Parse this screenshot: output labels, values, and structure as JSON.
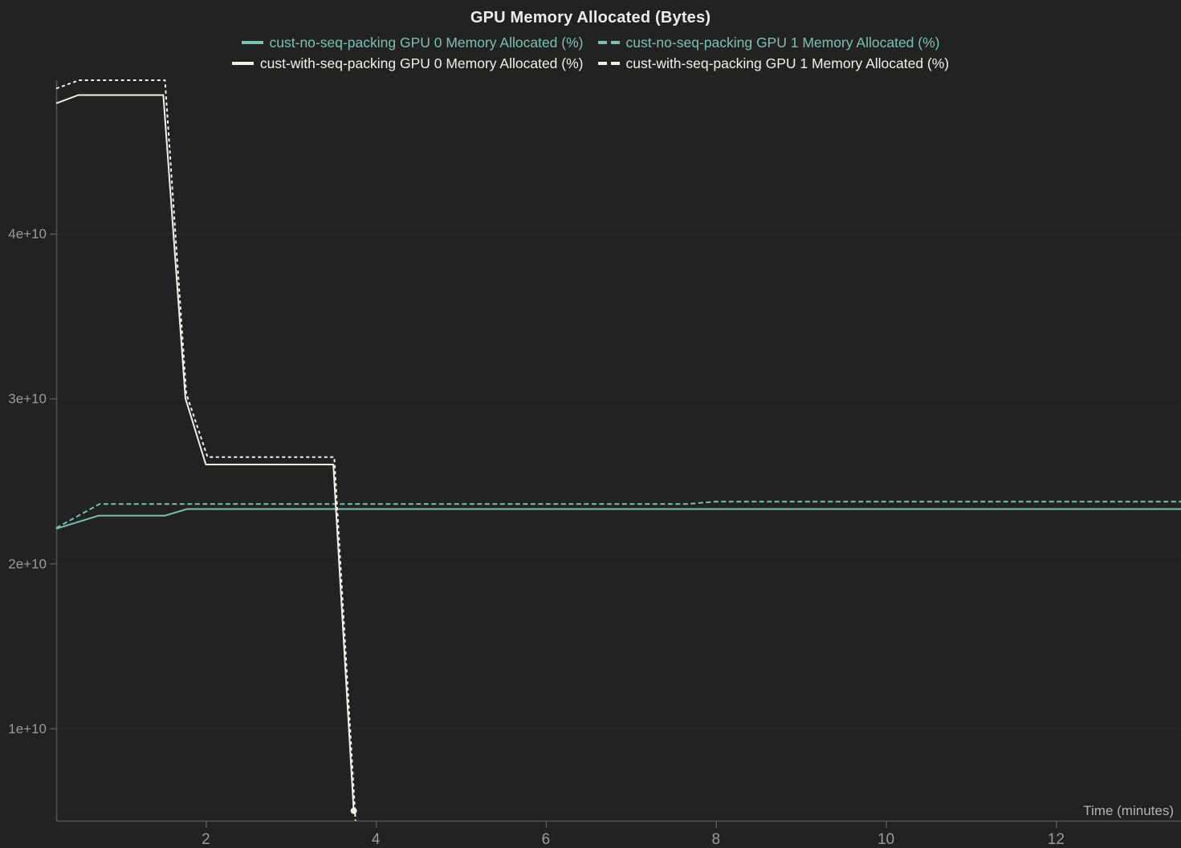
{
  "chart_data": {
    "type": "line",
    "title": "GPU Memory Allocated (Bytes)",
    "xlabel": "Time (minutes)",
    "ylabel": "",
    "xlim": [
      0.24,
      13.47
    ],
    "ylim": [
      4400000000.0,
      49300000000.0
    ],
    "x_ticks": [
      2,
      4,
      6,
      8,
      10,
      12
    ],
    "x_tick_labels": [
      "2",
      "4",
      "6",
      "8",
      "10",
      "12"
    ],
    "y_ticks": [
      10000000000.0,
      20000000000.0,
      30000000000.0,
      40000000000.0
    ],
    "y_tick_labels": [
      "1e+10",
      "2e+10",
      "3e+10",
      "4e+10"
    ],
    "grid": "horizontal-faint",
    "legend_position": "top-center-two-rows",
    "series": [
      {
        "name": "cust-no-seq-packing GPU 0 Memory Allocated (%)",
        "color": "#76c2b0",
        "dash": false,
        "end_marker": false,
        "points": [
          [
            0.24,
            22100000000.0
          ],
          [
            0.74,
            22900000000.0
          ],
          [
            1.52,
            22900000000.0
          ],
          [
            1.78,
            23300000000.0
          ],
          [
            13.47,
            23300000000.0
          ]
        ]
      },
      {
        "name": "cust-no-seq-packing GPU 1 Memory Allocated (%)",
        "color": "#76c2b0",
        "dash": true,
        "end_marker": false,
        "points": [
          [
            0.24,
            22150000000.0
          ],
          [
            0.75,
            23600000000.0
          ],
          [
            7.65,
            23600000000.0
          ],
          [
            8.0,
            23750000000.0
          ],
          [
            13.47,
            23750000000.0
          ]
        ]
      },
      {
        "name": "cust-with-seq-packing GPU 0 Memory Allocated (%)",
        "color": "#f2efe6",
        "dash": false,
        "end_marker": true,
        "points": [
          [
            0.24,
            47900000000.0
          ],
          [
            0.5,
            48400000000.0
          ],
          [
            1.5,
            48400000000.0
          ],
          [
            1.76,
            30000000000.0
          ],
          [
            2.0,
            26000000000.0
          ],
          [
            3.5,
            26000000000.0
          ],
          [
            3.74,
            5000000000.0
          ]
        ]
      },
      {
        "name": "cust-with-seq-packing GPU 1 Memory Allocated (%)",
        "color": "#f2efe6",
        "dash": true,
        "end_marker": false,
        "points": [
          [
            0.24,
            48800000000.0
          ],
          [
            0.51,
            49300000000.0
          ],
          [
            1.52,
            49300000000.0
          ],
          [
            1.77,
            30300000000.0
          ],
          [
            2.02,
            26450000000.0
          ],
          [
            3.51,
            26450000000.0
          ],
          [
            3.76,
            4400000000.0
          ]
        ]
      }
    ],
    "colors": {
      "background": "#222222",
      "axis_line": "#53565a",
      "grid_line": "#2b2b2b",
      "tick_label": "#9b9b9b",
      "axis_title": "#b3b3b3",
      "title_text": "#ececec"
    }
  }
}
